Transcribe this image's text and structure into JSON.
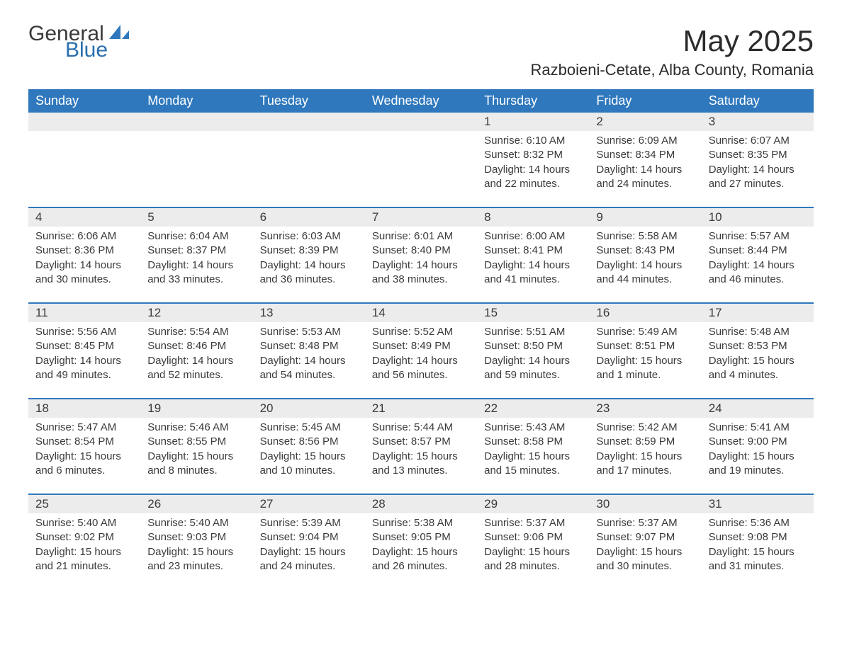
{
  "brand": {
    "word1": "General",
    "word2": "Blue",
    "icon_color": "#2f78bd"
  },
  "title": "May 2025",
  "location": "Razboieni-Cetate, Alba County, Romania",
  "colors": {
    "header_bg": "#2f78bd",
    "header_text": "#ffffff",
    "daynum_bg": "#ececec",
    "row_border": "#2f78bd",
    "text": "#3a3a3a",
    "background": "#ffffff"
  },
  "fonts": {
    "title_size": 42,
    "location_size": 22,
    "header_size": 18,
    "daynum_size": 17,
    "body_size": 15
  },
  "day_headers": [
    "Sunday",
    "Monday",
    "Tuesday",
    "Wednesday",
    "Thursday",
    "Friday",
    "Saturday"
  ],
  "weeks": [
    [
      null,
      null,
      null,
      null,
      {
        "n": "1",
        "sr": "Sunrise: 6:10 AM",
        "ss": "Sunset: 8:32 PM",
        "dl": "Daylight: 14 hours and 22 minutes."
      },
      {
        "n": "2",
        "sr": "Sunrise: 6:09 AM",
        "ss": "Sunset: 8:34 PM",
        "dl": "Daylight: 14 hours and 24 minutes."
      },
      {
        "n": "3",
        "sr": "Sunrise: 6:07 AM",
        "ss": "Sunset: 8:35 PM",
        "dl": "Daylight: 14 hours and 27 minutes."
      }
    ],
    [
      {
        "n": "4",
        "sr": "Sunrise: 6:06 AM",
        "ss": "Sunset: 8:36 PM",
        "dl": "Daylight: 14 hours and 30 minutes."
      },
      {
        "n": "5",
        "sr": "Sunrise: 6:04 AM",
        "ss": "Sunset: 8:37 PM",
        "dl": "Daylight: 14 hours and 33 minutes."
      },
      {
        "n": "6",
        "sr": "Sunrise: 6:03 AM",
        "ss": "Sunset: 8:39 PM",
        "dl": "Daylight: 14 hours and 36 minutes."
      },
      {
        "n": "7",
        "sr": "Sunrise: 6:01 AM",
        "ss": "Sunset: 8:40 PM",
        "dl": "Daylight: 14 hours and 38 minutes."
      },
      {
        "n": "8",
        "sr": "Sunrise: 6:00 AM",
        "ss": "Sunset: 8:41 PM",
        "dl": "Daylight: 14 hours and 41 minutes."
      },
      {
        "n": "9",
        "sr": "Sunrise: 5:58 AM",
        "ss": "Sunset: 8:43 PM",
        "dl": "Daylight: 14 hours and 44 minutes."
      },
      {
        "n": "10",
        "sr": "Sunrise: 5:57 AM",
        "ss": "Sunset: 8:44 PM",
        "dl": "Daylight: 14 hours and 46 minutes."
      }
    ],
    [
      {
        "n": "11",
        "sr": "Sunrise: 5:56 AM",
        "ss": "Sunset: 8:45 PM",
        "dl": "Daylight: 14 hours and 49 minutes."
      },
      {
        "n": "12",
        "sr": "Sunrise: 5:54 AM",
        "ss": "Sunset: 8:46 PM",
        "dl": "Daylight: 14 hours and 52 minutes."
      },
      {
        "n": "13",
        "sr": "Sunrise: 5:53 AM",
        "ss": "Sunset: 8:48 PM",
        "dl": "Daylight: 14 hours and 54 minutes."
      },
      {
        "n": "14",
        "sr": "Sunrise: 5:52 AM",
        "ss": "Sunset: 8:49 PM",
        "dl": "Daylight: 14 hours and 56 minutes."
      },
      {
        "n": "15",
        "sr": "Sunrise: 5:51 AM",
        "ss": "Sunset: 8:50 PM",
        "dl": "Daylight: 14 hours and 59 minutes."
      },
      {
        "n": "16",
        "sr": "Sunrise: 5:49 AM",
        "ss": "Sunset: 8:51 PM",
        "dl": "Daylight: 15 hours and 1 minute."
      },
      {
        "n": "17",
        "sr": "Sunrise: 5:48 AM",
        "ss": "Sunset: 8:53 PM",
        "dl": "Daylight: 15 hours and 4 minutes."
      }
    ],
    [
      {
        "n": "18",
        "sr": "Sunrise: 5:47 AM",
        "ss": "Sunset: 8:54 PM",
        "dl": "Daylight: 15 hours and 6 minutes."
      },
      {
        "n": "19",
        "sr": "Sunrise: 5:46 AM",
        "ss": "Sunset: 8:55 PM",
        "dl": "Daylight: 15 hours and 8 minutes."
      },
      {
        "n": "20",
        "sr": "Sunrise: 5:45 AM",
        "ss": "Sunset: 8:56 PM",
        "dl": "Daylight: 15 hours and 10 minutes."
      },
      {
        "n": "21",
        "sr": "Sunrise: 5:44 AM",
        "ss": "Sunset: 8:57 PM",
        "dl": "Daylight: 15 hours and 13 minutes."
      },
      {
        "n": "22",
        "sr": "Sunrise: 5:43 AM",
        "ss": "Sunset: 8:58 PM",
        "dl": "Daylight: 15 hours and 15 minutes."
      },
      {
        "n": "23",
        "sr": "Sunrise: 5:42 AM",
        "ss": "Sunset: 8:59 PM",
        "dl": "Daylight: 15 hours and 17 minutes."
      },
      {
        "n": "24",
        "sr": "Sunrise: 5:41 AM",
        "ss": "Sunset: 9:00 PM",
        "dl": "Daylight: 15 hours and 19 minutes."
      }
    ],
    [
      {
        "n": "25",
        "sr": "Sunrise: 5:40 AM",
        "ss": "Sunset: 9:02 PM",
        "dl": "Daylight: 15 hours and 21 minutes."
      },
      {
        "n": "26",
        "sr": "Sunrise: 5:40 AM",
        "ss": "Sunset: 9:03 PM",
        "dl": "Daylight: 15 hours and 23 minutes."
      },
      {
        "n": "27",
        "sr": "Sunrise: 5:39 AM",
        "ss": "Sunset: 9:04 PM",
        "dl": "Daylight: 15 hours and 24 minutes."
      },
      {
        "n": "28",
        "sr": "Sunrise: 5:38 AM",
        "ss": "Sunset: 9:05 PM",
        "dl": "Daylight: 15 hours and 26 minutes."
      },
      {
        "n": "29",
        "sr": "Sunrise: 5:37 AM",
        "ss": "Sunset: 9:06 PM",
        "dl": "Daylight: 15 hours and 28 minutes."
      },
      {
        "n": "30",
        "sr": "Sunrise: 5:37 AM",
        "ss": "Sunset: 9:07 PM",
        "dl": "Daylight: 15 hours and 30 minutes."
      },
      {
        "n": "31",
        "sr": "Sunrise: 5:36 AM",
        "ss": "Sunset: 9:08 PM",
        "dl": "Daylight: 15 hours and 31 minutes."
      }
    ]
  ]
}
